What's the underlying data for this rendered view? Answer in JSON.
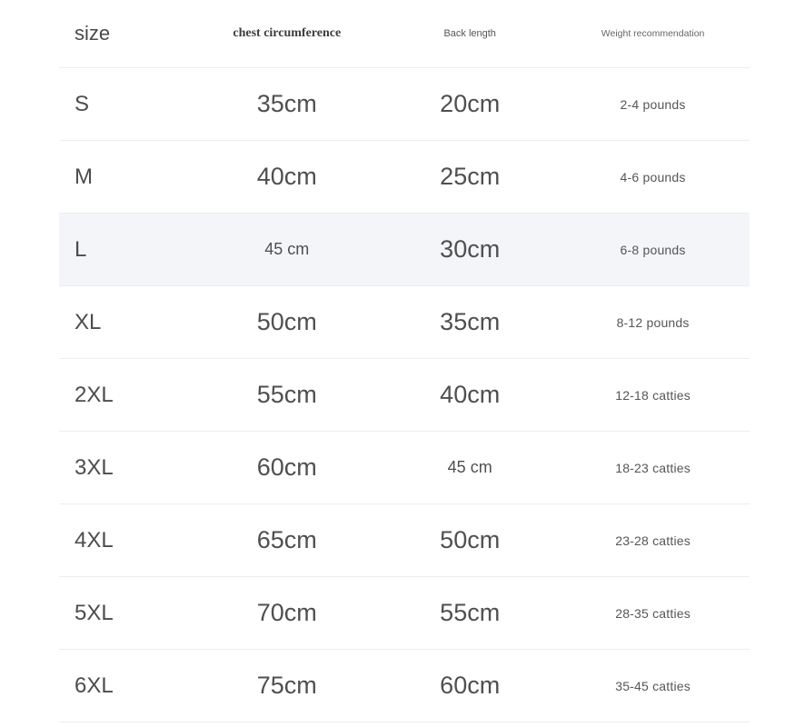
{
  "table": {
    "columns": {
      "size": "size",
      "chest": "chest circumference",
      "back": "Back length",
      "weight": "Weight recommendation"
    },
    "rows": [
      {
        "size": "S",
        "chest": "35cm",
        "back": "20cm",
        "weight": "2-4 pounds",
        "highlighted": false,
        "chest_small": false,
        "back_small": false
      },
      {
        "size": "M",
        "chest": "40cm",
        "back": "25cm",
        "weight": "4-6 pounds",
        "highlighted": false,
        "chest_small": false,
        "back_small": false
      },
      {
        "size": "L",
        "chest": "45 cm",
        "back": "30cm",
        "weight": "6-8 pounds",
        "highlighted": true,
        "chest_small": true,
        "back_small": false
      },
      {
        "size": "XL",
        "chest": "50cm",
        "back": "35cm",
        "weight": "8-12 pounds",
        "highlighted": false,
        "chest_small": false,
        "back_small": false
      },
      {
        "size": "2XL",
        "chest": "55cm",
        "back": "40cm",
        "weight": "12-18 catties",
        "highlighted": false,
        "chest_small": false,
        "back_small": false
      },
      {
        "size": "3XL",
        "chest": "60cm",
        "back": "45 cm",
        "weight": "18-23 catties",
        "highlighted": false,
        "chest_small": false,
        "back_small": true
      },
      {
        "size": "4XL",
        "chest": "65cm",
        "back": "50cm",
        "weight": "23-28 catties",
        "highlighted": false,
        "chest_small": false,
        "back_small": false
      },
      {
        "size": "5XL",
        "chest": "70cm",
        "back": "55cm",
        "weight": "28-35 catties",
        "highlighted": false,
        "chest_small": false,
        "back_small": false
      },
      {
        "size": "6XL",
        "chest": "75cm",
        "back": "60cm",
        "weight": "35-45 catties",
        "highlighted": false,
        "chest_small": false,
        "back_small": false
      }
    ],
    "colors": {
      "highlight_row_bg": "#f3f5f8",
      "divider": "#ebedf2",
      "text_primary": "#4c4c4c",
      "text_secondary": "#565656"
    }
  }
}
